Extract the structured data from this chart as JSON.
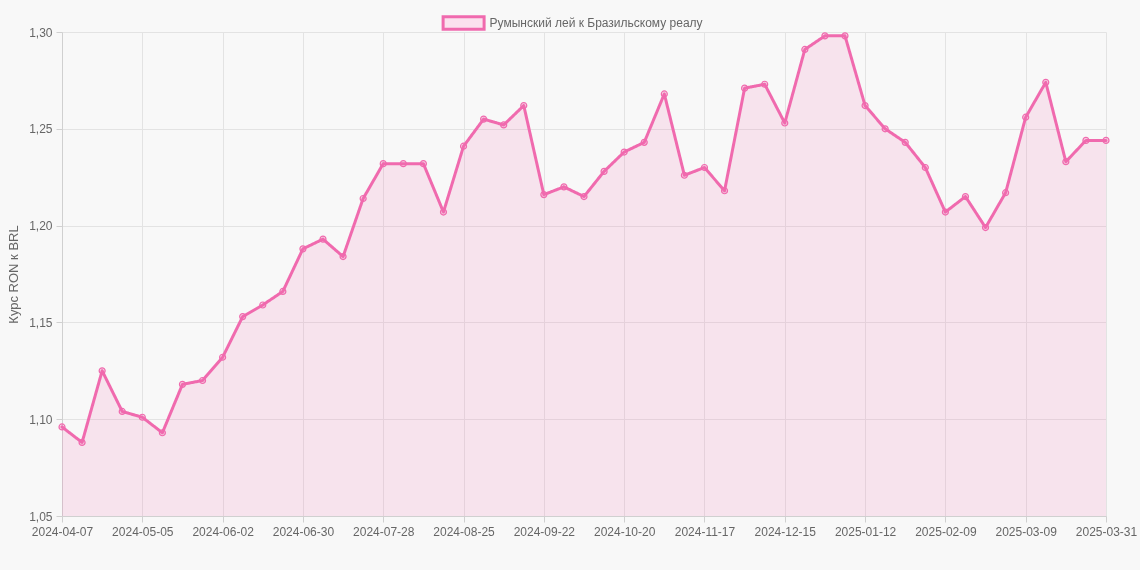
{
  "chart_data": {
    "type": "area",
    "ylabel": "Курс RON к BRL",
    "categories": [
      "2024-04-07",
      null,
      null,
      null,
      "2024-05-05",
      null,
      null,
      null,
      "2024-06-02",
      null,
      null,
      null,
      "2024-06-30",
      null,
      null,
      null,
      "2024-07-28",
      null,
      null,
      null,
      "2024-08-25",
      null,
      null,
      null,
      "2024-09-22",
      null,
      null,
      null,
      "2024-10-20",
      null,
      null,
      null,
      "2024-11-17",
      null,
      null,
      null,
      "2024-12-15",
      null,
      null,
      null,
      "2025-01-12",
      null,
      null,
      null,
      "2025-02-09",
      null,
      null,
      null,
      "2025-03-09",
      null,
      null,
      null,
      "2025-03-31"
    ],
    "series": [
      {
        "name": "Румынский лей к Бразильскому реалу",
        "color": "#f06aae",
        "values": [
          1.096,
          1.088,
          1.125,
          1.104,
          1.101,
          1.093,
          1.118,
          1.12,
          1.132,
          1.153,
          1.159,
          1.166,
          1.188,
          1.193,
          1.184,
          1.214,
          1.232,
          1.232,
          1.232,
          1.207,
          1.241,
          1.255,
          1.252,
          1.262,
          1.216,
          1.22,
          1.215,
          1.228,
          1.238,
          1.243,
          1.268,
          1.226,
          1.23,
          1.218,
          1.271,
          1.273,
          1.253,
          1.291,
          1.298,
          1.298,
          1.262,
          1.25,
          1.243,
          1.23,
          1.207,
          1.215,
          1.199,
          1.217,
          1.256,
          1.274,
          1.233,
          1.244,
          1.244
        ]
      }
    ],
    "ylim": [
      1.05,
      1.3
    ],
    "yticks": [
      {
        "value": 1.05,
        "label": "1,05"
      },
      {
        "value": 1.1,
        "label": "1,10"
      },
      {
        "value": 1.15,
        "label": "1,15"
      },
      {
        "value": 1.2,
        "label": "1,20"
      },
      {
        "value": 1.25,
        "label": "1,25"
      },
      {
        "value": 1.3,
        "label": "1,30"
      }
    ],
    "grid": true,
    "legend": "top",
    "marker": "circle",
    "line_style": "solid"
  }
}
